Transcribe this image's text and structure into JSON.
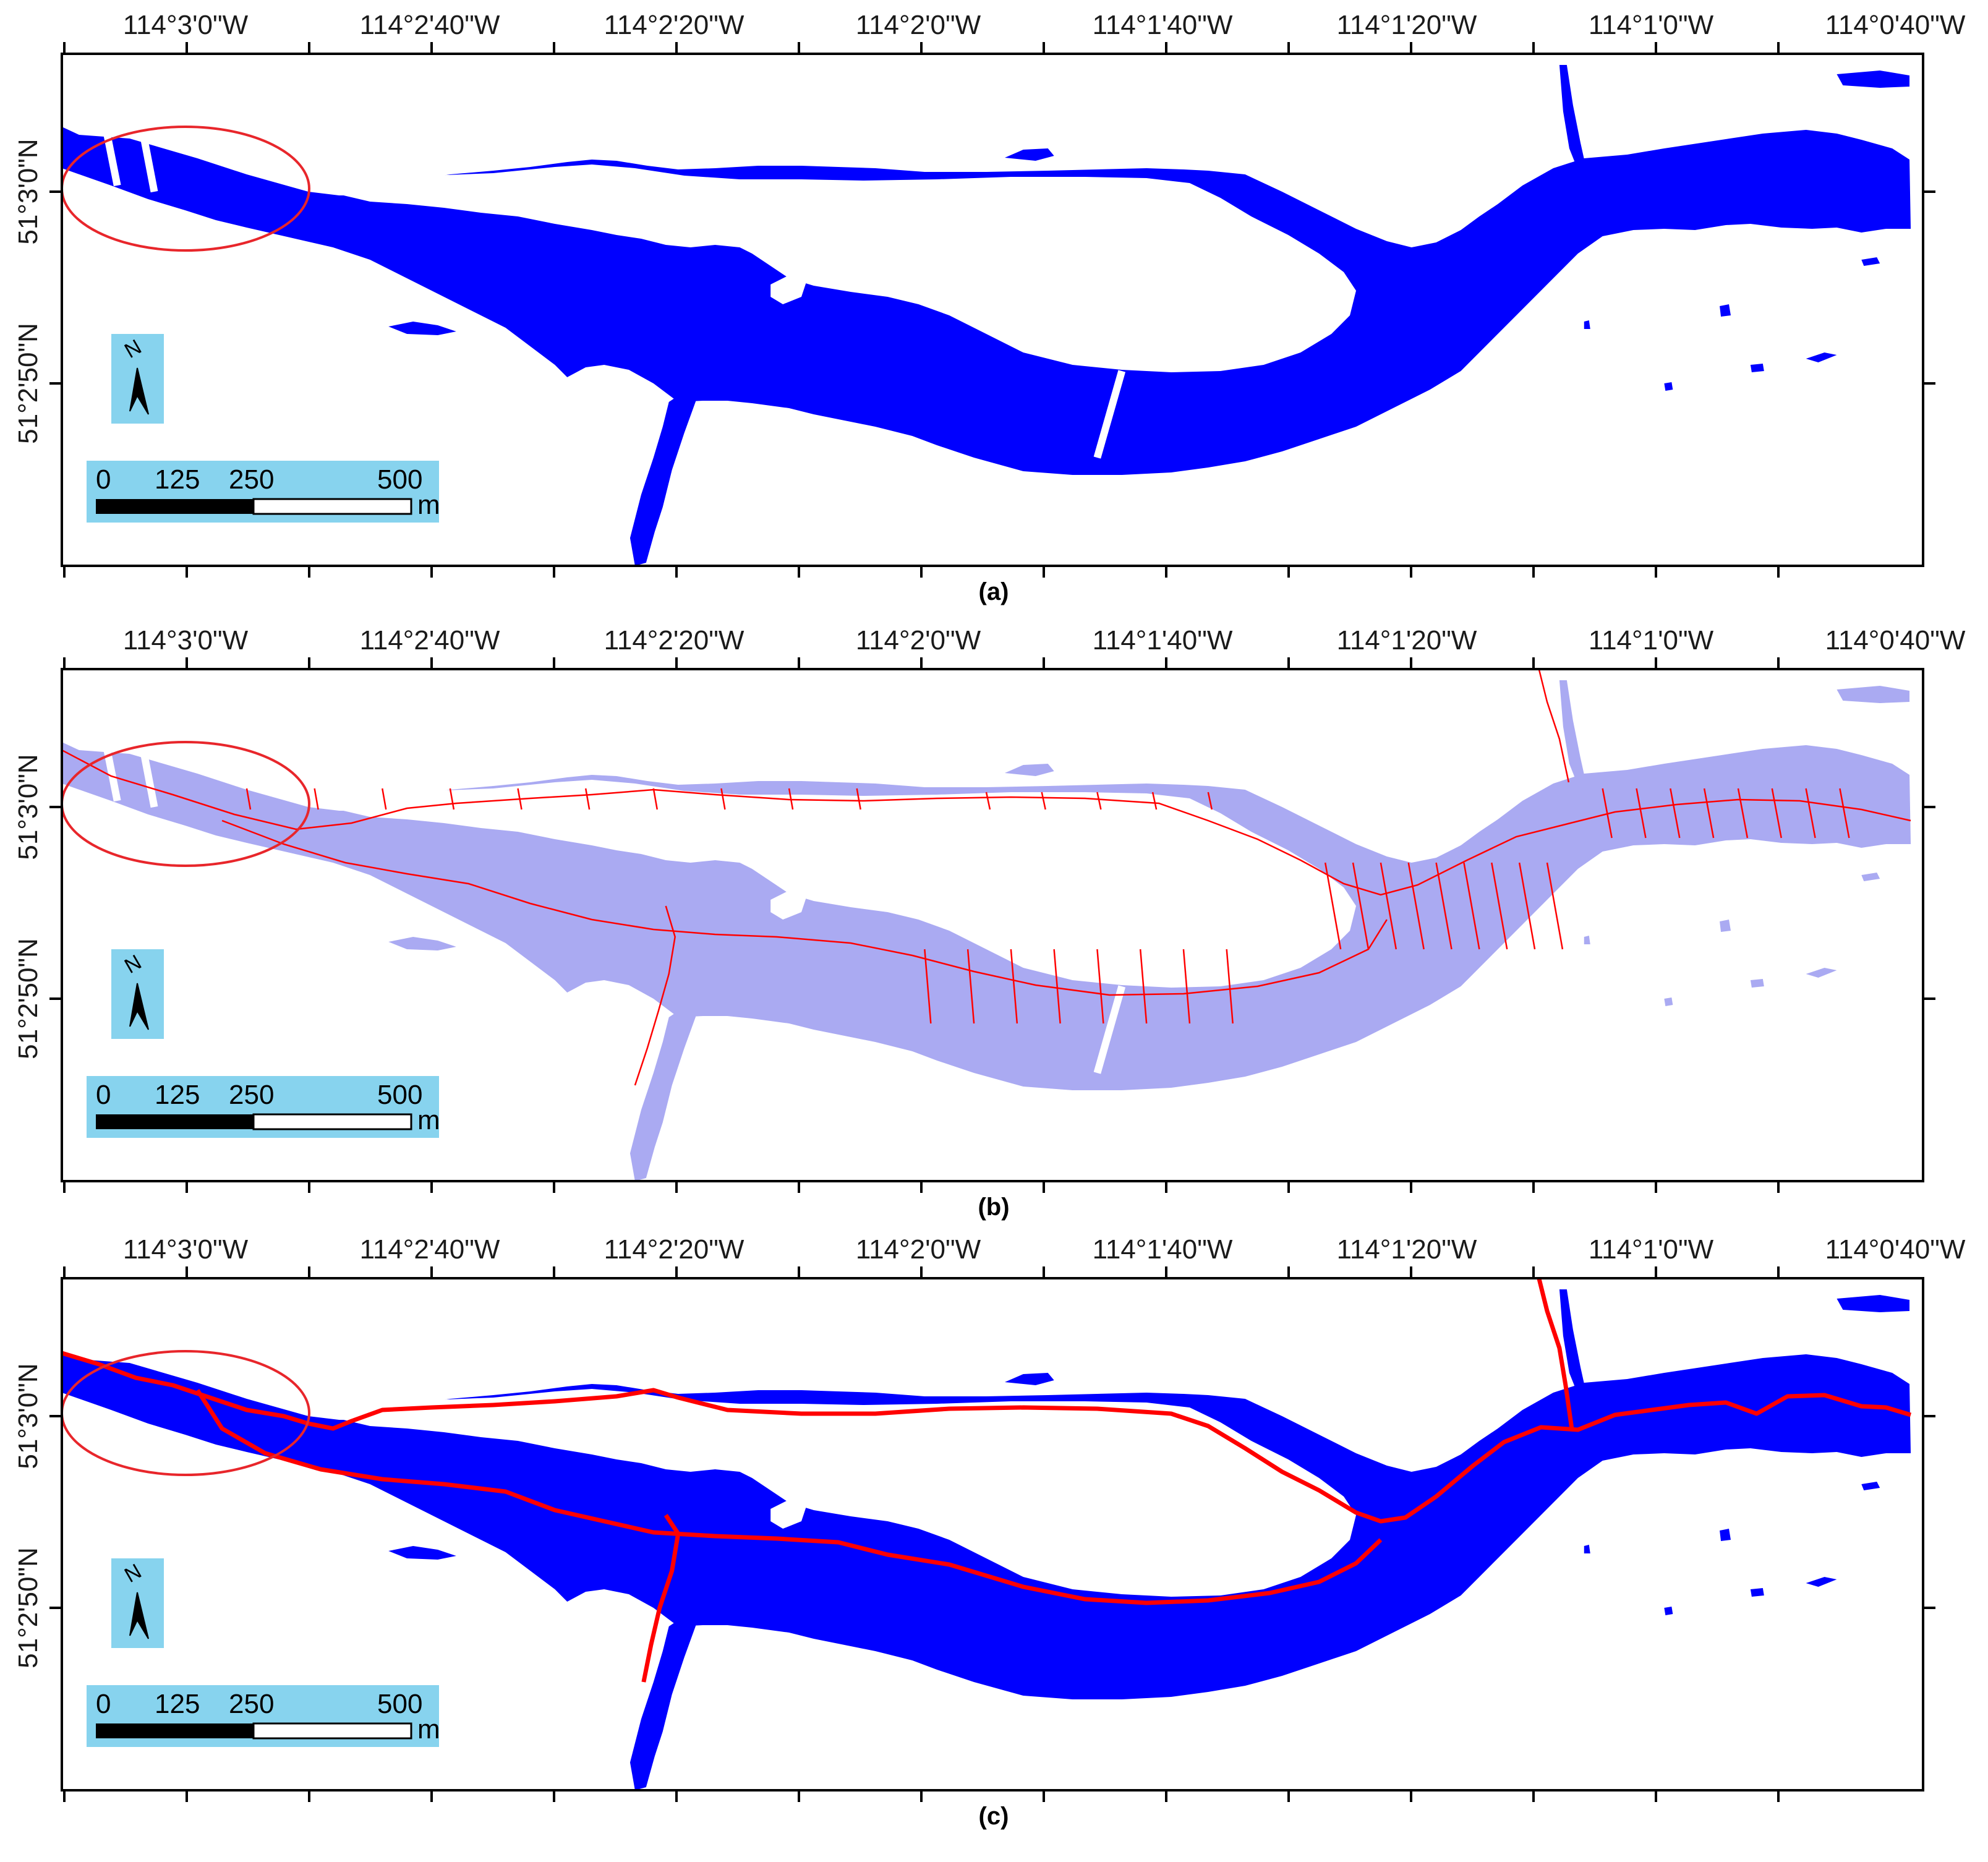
{
  "figure": {
    "panels": [
      {
        "caption": "(a)",
        "style": "water-mask",
        "has_centerline": false,
        "has_skeleton": false,
        "lon_labels": [
          "114°3'0\"W",
          "114°2'40\"W",
          "114°2'20\"W",
          "114°2'0\"W",
          "114°1'40\"W",
          "114°1'20\"W",
          "114°1'0\"W",
          "114°0'40\"W"
        ],
        "lat_labels": [
          "51°3'0\"N",
          "51°2'50\"N"
        ]
      },
      {
        "caption": "(b)",
        "style": "water-mask-light",
        "has_centerline": false,
        "has_skeleton": true,
        "lon_labels": [
          "114°3'0\"W",
          "114°2'40\"W",
          "114°2'20\"W",
          "114°2'0\"W",
          "114°1'40\"W",
          "114°1'20\"W",
          "114°1'0\"W",
          "114°0'40\"W"
        ],
        "lat_labels": [
          "51°3'0\"N",
          "51°2'50\"N"
        ]
      },
      {
        "caption": "(c)",
        "style": "water-mask",
        "has_centerline": true,
        "has_skeleton": false,
        "lon_labels": [
          "114°3'0\"W",
          "114°2'40\"W",
          "114°2'20\"W",
          "114°2'0\"W",
          "114°1'40\"W",
          "114°1'20\"W",
          "114°1'0\"W",
          "114°0'40\"W"
        ],
        "lat_labels": [
          "51°3'0\"N",
          "51°2'50\"N"
        ]
      }
    ],
    "north_arrow": {
      "label": "N",
      "icon": "north-arrow-icon"
    },
    "scale_bar": {
      "ticks": [
        "0",
        "125",
        "250",
        "500"
      ],
      "unit": "m"
    },
    "colors": {
      "water": "#0000ff",
      "water_light": "#aaaaf2",
      "centerline": "#ff0000",
      "highlight_ellipse": "#e8262b",
      "legend_background": "#87d3ee"
    }
  }
}
